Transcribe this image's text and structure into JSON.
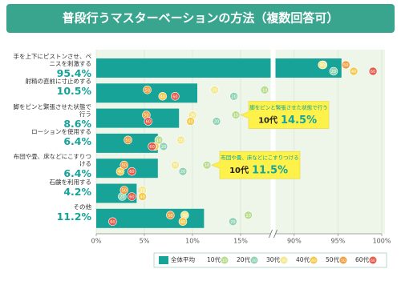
{
  "chart_data": {
    "type": "bar",
    "orientation": "horizontal",
    "title": "普段行うマスターベーションの方法（複数回答可）",
    "categories": [
      "手を上下にピストンさせ、ペニスを刺激する",
      "射精の直前に寸止めする",
      "脚をピンと緊張させた状態で行う",
      "ローションを使用する",
      "布団や畳、床などにこすりつける",
      "石鹸を利用する",
      "その他"
    ],
    "values": [
      95.4,
      10.5,
      8.6,
      6.4,
      6.4,
      4.2,
      11.2
    ],
    "value_labels": [
      "95.4%",
      "10.5%",
      "8.6%",
      "6.4%",
      "6.4%",
      "4.2%",
      "11.2%"
    ],
    "bar_name": "全体平均",
    "color": "#17a398",
    "xlim": [
      0,
      100
    ],
    "axis_break": [
      18,
      88
    ],
    "xticks": [
      {
        "value": 0,
        "label": "0%"
      },
      {
        "value": 5,
        "label": "5%"
      },
      {
        "value": 10,
        "label": "10%"
      },
      {
        "value": 15,
        "label": "15%"
      },
      {
        "value": 90,
        "label": "90%"
      },
      {
        "value": 95,
        "label": "95%"
      },
      {
        "value": 100,
        "label": "100%"
      }
    ],
    "grid": true,
    "series": [
      {
        "name": "10代",
        "marker_label": "10",
        "color": "#b9dc8f",
        "values": [
          93.3,
          17.5,
          14.5,
          6.5,
          11.5,
          4.7,
          15.8
        ]
      },
      {
        "name": "20代",
        "marker_label": "20",
        "color": "#8fd3b4",
        "values": [
          94.5,
          14.3,
          12.5,
          7.0,
          9.0,
          2.7,
          14.2
        ]
      },
      {
        "name": "30代",
        "marker_label": "30",
        "color": "#f3e88e",
        "values": [
          93.2,
          12.3,
          10.0,
          8.8,
          8.2,
          4.8,
          9.2
        ]
      },
      {
        "name": "40代",
        "marker_label": "40",
        "color": "#f5c94c",
        "values": [
          96.8,
          6.9,
          9.8,
          6.1,
          2.5,
          4.8,
          9.0
        ]
      },
      {
        "name": "50代",
        "marker_label": "50",
        "color": "#f0a043",
        "values": [
          95.9,
          5.3,
          5.2,
          3.3,
          2.9,
          2.9,
          7.7
        ]
      },
      {
        "name": "60代",
        "marker_label": "60",
        "color": "#e8594a",
        "values": [
          99.0,
          8.2,
          5.4,
          5.8,
          3.7,
          3.7,
          1.7
        ]
      }
    ],
    "annotations": [
      {
        "text": "脚をピンと緊張させた状態で行う",
        "group": "10代",
        "value": 14.5,
        "value_label": "14.5%"
      },
      {
        "text": "布団や畳、床などにこすりつける",
        "group": "10代",
        "value": 11.5,
        "value_label": "11.5%"
      }
    ]
  }
}
